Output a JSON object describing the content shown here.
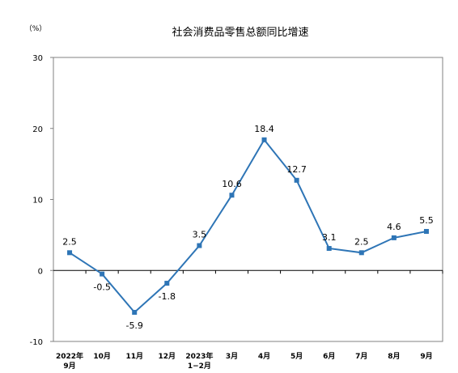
{
  "chart_data": {
    "type": "line",
    "title": "社会消费品零售总额同比增速",
    "unit_label": "（%）",
    "categories": [
      [
        "2022年",
        "9月"
      ],
      [
        "10月"
      ],
      [
        "11月"
      ],
      [
        "12月"
      ],
      [
        "2023年",
        "1−2月"
      ],
      [
        "3月"
      ],
      [
        "4月"
      ],
      [
        "5月"
      ],
      [
        "6月"
      ],
      [
        "7月"
      ],
      [
        "8月"
      ],
      [
        "9月"
      ]
    ],
    "series": [
      {
        "values": [
          2.5,
          -0.5,
          -5.9,
          -1.8,
          3.5,
          10.6,
          18.4,
          12.7,
          3.1,
          2.5,
          4.6,
          5.5
        ]
      }
    ],
    "data_labels": [
      "2.5",
      "-0.5",
      "-5.9",
      "-1.8",
      "3.5",
      "10.6",
      "18.4",
      "12.7",
      "3.1",
      "2.5",
      "4.6",
      "5.5"
    ],
    "label_positions": [
      "above",
      "below",
      "below",
      "below",
      "above",
      "above",
      "above",
      "above",
      "above",
      "above",
      "above",
      "above"
    ],
    "y_ticks": [
      "30",
      "20",
      "10",
      "0",
      "-10"
    ],
    "y_tick_values": [
      30,
      20,
      10,
      0,
      -10
    ],
    "ylim": [
      -10,
      30
    ],
    "grid": false,
    "line_color": "#2e75b6",
    "marker_color": "#2e75b6"
  }
}
